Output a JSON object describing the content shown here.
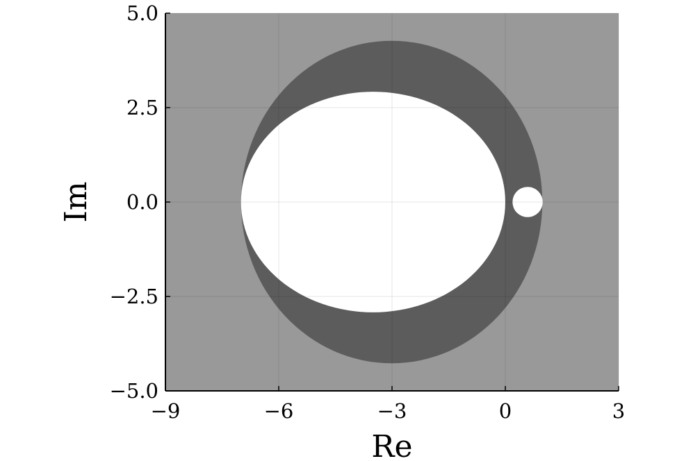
{
  "chart_data": {
    "type": "region",
    "xlabel": "Re",
    "ylabel": "Im",
    "xlim": [
      -9,
      3
    ],
    "ylim": [
      -5,
      5
    ],
    "xticks": [
      {
        "value": -9,
        "label": "−9"
      },
      {
        "value": -6,
        "label": "−6"
      },
      {
        "value": -3,
        "label": "−3"
      },
      0,
      3
    ],
    "yticks": [
      {
        "value": -5,
        "label": "−5.0"
      },
      {
        "value": -2.5,
        "label": "−2.5"
      },
      {
        "value": 0,
        "label": "0.0"
      },
      {
        "value": 2.5,
        "label": "2.5"
      },
      {
        "value": 5,
        "label": "5.0"
      }
    ],
    "grid": true,
    "background": "#999999",
    "regions": [
      {
        "color": "#5c5c5c",
        "cx": -3.01,
        "cy": 0,
        "rx": 3.99,
        "ry": 4.27
      },
      {
        "color": "#ffffff",
        "cx": -3.5,
        "cy": 0,
        "rx": 3.5,
        "ry": 2.92
      },
      {
        "color": "#ffffff",
        "cx": 0.59,
        "cy": 0,
        "rx": 0.4,
        "ry": 0.4
      }
    ]
  }
}
